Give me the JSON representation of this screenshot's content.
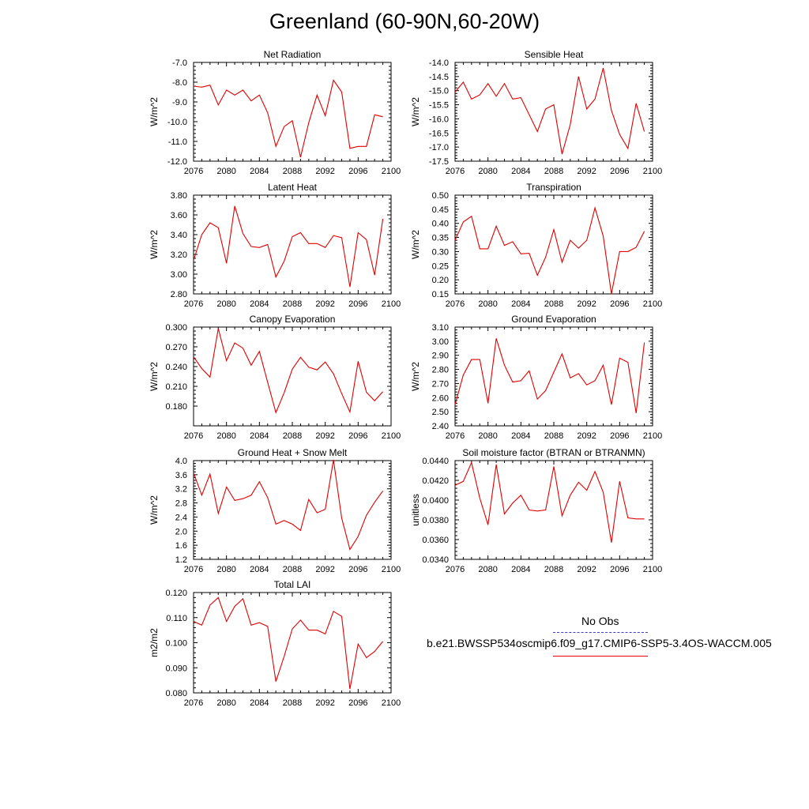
{
  "title": "Greenland (60-90N,60-20W)",
  "colors": {
    "series": "#e00000",
    "obs": "#3a3acc",
    "axis": "#000000"
  },
  "legend": {
    "obs_label": "No Obs",
    "model_label": "b.e21.BWSSP534oscmip6.f09_g17.CMIP6-SSP5-3.4OS-WACCM.005"
  },
  "chart_data": [
    {
      "type": "line",
      "title": "Net Radiation",
      "ylabel": "W/m^2",
      "xlim": [
        2076,
        2100
      ],
      "ylim": [
        -12.0,
        -7.0
      ],
      "xticks": [
        "2076",
        "2080",
        "2084",
        "2088",
        "2092",
        "2096",
        "2100"
      ],
      "yticks": [
        "-12.0",
        "-11.0",
        "-10.0",
        "-9.0",
        "-8.0",
        "-7.0"
      ],
      "x": [
        2076,
        2077,
        2078,
        2079,
        2080,
        2081,
        2082,
        2083,
        2084,
        2085,
        2086,
        2087,
        2088,
        2089,
        2090,
        2091,
        2092,
        2093,
        2094,
        2095,
        2096,
        2097,
        2098,
        2099
      ],
      "values": [
        -8.2,
        -8.25,
        -8.15,
        -9.15,
        -8.4,
        -8.65,
        -8.4,
        -8.95,
        -8.65,
        -9.55,
        -11.25,
        -10.25,
        -9.95,
        -11.8,
        -10.05,
        -8.65,
        -9.7,
        -7.9,
        -8.5,
        -11.35,
        -11.25,
        -11.25,
        -9.65,
        -9.75
      ]
    },
    {
      "type": "line",
      "title": "Sensible Heat",
      "ylabel": "W/m^2",
      "xlim": [
        2076,
        2100
      ],
      "ylim": [
        -17.5,
        -14.0
      ],
      "xticks": [
        "2076",
        "2080",
        "2084",
        "2088",
        "2092",
        "2096",
        "2100"
      ],
      "yticks": [
        "-17.5",
        "-17.0",
        "-16.5",
        "-16.0",
        "-15.5",
        "-15.0",
        "-14.5",
        "-14.0"
      ],
      "x": [
        2076,
        2077,
        2078,
        2079,
        2080,
        2081,
        2082,
        2083,
        2084,
        2085,
        2086,
        2087,
        2088,
        2089,
        2090,
        2091,
        2092,
        2093,
        2094,
        2095,
        2096,
        2097,
        2098,
        2099
      ],
      "values": [
        -15.05,
        -14.7,
        -15.3,
        -15.15,
        -14.75,
        -15.2,
        -14.75,
        -15.3,
        -15.25,
        -15.85,
        -16.45,
        -15.65,
        -15.5,
        -17.25,
        -16.2,
        -14.5,
        -15.65,
        -15.3,
        -14.2,
        -15.7,
        -16.55,
        -17.05,
        -15.45,
        -16.45
      ]
    },
    {
      "type": "line",
      "title": "Latent Heat",
      "ylabel": "W/m^2",
      "xlim": [
        2076,
        2100
      ],
      "ylim": [
        2.8,
        3.8
      ],
      "xticks": [
        "2076",
        "2080",
        "2084",
        "2088",
        "2092",
        "2096",
        "2100"
      ],
      "yticks": [
        "2.80",
        "3.00",
        "3.20",
        "3.40",
        "3.60",
        "3.80"
      ],
      "x": [
        2076,
        2077,
        2078,
        2079,
        2080,
        2081,
        2082,
        2083,
        2084,
        2085,
        2086,
        2087,
        2088,
        2089,
        2090,
        2091,
        2092,
        2093,
        2094,
        2095,
        2096,
        2097,
        2098,
        2099
      ],
      "values": [
        3.14,
        3.4,
        3.52,
        3.47,
        3.11,
        3.69,
        3.41,
        3.28,
        3.27,
        3.3,
        2.97,
        3.13,
        3.38,
        3.42,
        3.31,
        3.31,
        3.27,
        3.39,
        3.37,
        2.87,
        3.42,
        3.35,
        2.99,
        3.56
      ]
    },
    {
      "type": "line",
      "title": "Transpiration",
      "ylabel": "W/m^2",
      "xlim": [
        2076,
        2100
      ],
      "ylim": [
        0.15,
        0.5
      ],
      "xticks": [
        "2076",
        "2080",
        "2084",
        "2088",
        "2092",
        "2096",
        "2100"
      ],
      "yticks": [
        "0.15",
        "0.20",
        "0.25",
        "0.30",
        "0.35",
        "0.40",
        "0.45",
        "0.50"
      ],
      "x": [
        2076,
        2077,
        2078,
        2079,
        2080,
        2081,
        2082,
        2083,
        2084,
        2085,
        2086,
        2087,
        2088,
        2089,
        2090,
        2091,
        2092,
        2093,
        2094,
        2095,
        2096,
        2097,
        2098,
        2099
      ],
      "values": [
        0.34,
        0.405,
        0.425,
        0.31,
        0.31,
        0.39,
        0.322,
        0.335,
        0.292,
        0.294,
        0.216,
        0.28,
        0.378,
        0.262,
        0.34,
        0.312,
        0.34,
        0.455,
        0.355,
        0.15,
        0.3,
        0.3,
        0.315,
        0.372
      ]
    },
    {
      "type": "line",
      "title": "Canopy Evaporation",
      "ylabel": "W/m^2",
      "xlim": [
        2076,
        2100
      ],
      "ylim": [
        0.15,
        0.3
      ],
      "xticks": [
        "2076",
        "2080",
        "2084",
        "2088",
        "2092",
        "2096",
        "2100"
      ],
      "yticks": [
        "0.180",
        "0.210",
        "0.240",
        "0.270",
        "0.300"
      ],
      "x": [
        2076,
        2077,
        2078,
        2079,
        2080,
        2081,
        2082,
        2083,
        2084,
        2085,
        2086,
        2087,
        2088,
        2089,
        2090,
        2091,
        2092,
        2093,
        2094,
        2095,
        2096,
        2097,
        2098,
        2099
      ],
      "values": [
        0.255,
        0.237,
        0.224,
        0.298,
        0.249,
        0.276,
        0.268,
        0.242,
        0.263,
        0.216,
        0.17,
        0.2,
        0.236,
        0.254,
        0.239,
        0.235,
        0.247,
        0.229,
        0.199,
        0.171,
        0.248,
        0.201,
        0.188,
        0.202
      ]
    },
    {
      "type": "line",
      "title": "Ground Evaporation",
      "ylabel": "W/m^2",
      "xlim": [
        2076,
        2100
      ],
      "ylim": [
        2.4,
        3.1
      ],
      "xticks": [
        "2076",
        "2080",
        "2084",
        "2088",
        "2092",
        "2096",
        "2100"
      ],
      "yticks": [
        "2.40",
        "2.50",
        "2.60",
        "2.70",
        "2.80",
        "2.90",
        "3.00",
        "3.10"
      ],
      "x": [
        2076,
        2077,
        2078,
        2079,
        2080,
        2081,
        2082,
        2083,
        2084,
        2085,
        2086,
        2087,
        2088,
        2089,
        2090,
        2091,
        2092,
        2093,
        2094,
        2095,
        2096,
        2097,
        2098,
        2099
      ],
      "values": [
        2.55,
        2.76,
        2.87,
        2.87,
        2.56,
        3.02,
        2.83,
        2.71,
        2.72,
        2.79,
        2.59,
        2.65,
        2.78,
        2.91,
        2.74,
        2.77,
        2.69,
        2.72,
        2.83,
        2.55,
        2.88,
        2.85,
        2.49,
        2.99
      ]
    },
    {
      "type": "line",
      "title": "Ground Heat + Snow Melt",
      "ylabel": "W/m^2",
      "xlim": [
        2076,
        2100
      ],
      "ylim": [
        1.2,
        4.0
      ],
      "xticks": [
        "2076",
        "2080",
        "2084",
        "2088",
        "2092",
        "2096",
        "2100"
      ],
      "yticks": [
        "1.2",
        "1.6",
        "2.0",
        "2.4",
        "2.8",
        "3.2",
        "3.6",
        "4.0"
      ],
      "x": [
        2076,
        2077,
        2078,
        2079,
        2080,
        2081,
        2082,
        2083,
        2084,
        2085,
        2086,
        2087,
        2088,
        2089,
        2090,
        2091,
        2092,
        2093,
        2094,
        2095,
        2096,
        2097,
        2098,
        2099
      ],
      "values": [
        3.65,
        3.02,
        3.62,
        2.5,
        3.25,
        2.87,
        2.92,
        3.02,
        3.4,
        2.95,
        2.2,
        2.3,
        2.2,
        2.02,
        2.9,
        2.52,
        2.62,
        4.02,
        2.37,
        1.48,
        1.85,
        2.45,
        2.82,
        3.14
      ]
    },
    {
      "type": "line",
      "title": "Soil moisture factor (BTRAN or BTRANMN)",
      "ylabel": "unitless",
      "xlim": [
        2076,
        2100
      ],
      "ylim": [
        0.034,
        0.044
      ],
      "xticks": [
        "2076",
        "2080",
        "2084",
        "2088",
        "2092",
        "2096",
        "2100"
      ],
      "yticks": [
        "0.0340",
        "0.0360",
        "0.0380",
        "0.0400",
        "0.0420",
        "0.0440"
      ],
      "x": [
        2076,
        2077,
        2078,
        2079,
        2080,
        2081,
        2082,
        2083,
        2084,
        2085,
        2086,
        2087,
        2088,
        2089,
        2090,
        2091,
        2092,
        2093,
        2094,
        2095,
        2096,
        2097,
        2098,
        2099
      ],
      "values": [
        0.0415,
        0.0419,
        0.0438,
        0.0402,
        0.0375,
        0.0436,
        0.0386,
        0.0397,
        0.0405,
        0.039,
        0.0389,
        0.039,
        0.0434,
        0.0384,
        0.0405,
        0.0418,
        0.041,
        0.0429,
        0.0408,
        0.0357,
        0.0419,
        0.0382,
        0.0381,
        0.0381
      ]
    },
    {
      "type": "line",
      "title": "Total LAI",
      "ylabel": "m2/m2",
      "xlim": [
        2076,
        2100
      ],
      "ylim": [
        0.08,
        0.12
      ],
      "xticks": [
        "2076",
        "2080",
        "2084",
        "2088",
        "2092",
        "2096",
        "2100"
      ],
      "yticks": [
        "0.080",
        "0.090",
        "0.100",
        "0.110",
        "0.120"
      ],
      "x": [
        2076,
        2077,
        2078,
        2079,
        2080,
        2081,
        2082,
        2083,
        2084,
        2085,
        2086,
        2087,
        2088,
        2089,
        2090,
        2091,
        2092,
        2093,
        2094,
        2095,
        2096,
        2097,
        2098,
        2099
      ],
      "values": [
        0.1085,
        0.107,
        0.115,
        0.118,
        0.1085,
        0.1145,
        0.1175,
        0.107,
        0.108,
        0.1065,
        0.0845,
        0.0945,
        0.1055,
        0.109,
        0.105,
        0.105,
        0.1035,
        0.1125,
        0.1105,
        0.0815,
        0.0995,
        0.094,
        0.0965,
        0.1005
      ]
    }
  ]
}
